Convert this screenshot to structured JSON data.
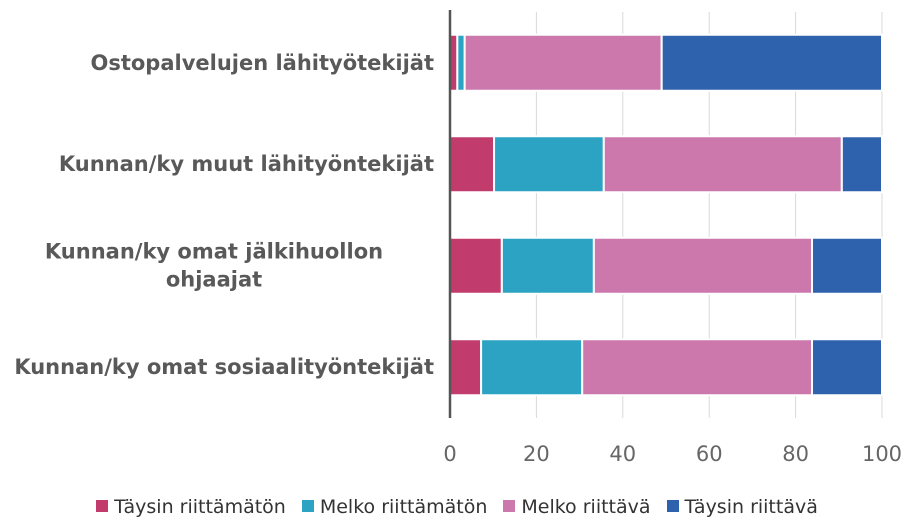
{
  "chart_data": {
    "type": "stacked_barh",
    "categories": [
      "Ostopalvelujen lähityötekijät",
      "Kunnan/ky muut lähityöntekijät",
      "Kunnan/ky omat jälkihuollon ohjaajat",
      "Kunnan/ky omat sosiaalityöntekijät"
    ],
    "series": [
      {
        "name": "Täysin riittämätön",
        "color": "#c13b6c",
        "values": [
          1.7,
          10.2,
          12,
          7.2
        ]
      },
      {
        "name": "Melko riittämätön",
        "color": "#2ca3c3",
        "values": [
          1.7,
          25.4,
          21.3,
          23.4
        ]
      },
      {
        "name": "Melko riittävä",
        "color": "#cc78ad",
        "values": [
          45.6,
          55.1,
          50.5,
          53.2
        ]
      },
      {
        "name": "Täysin riittävä",
        "color": "#2f62ad",
        "values": [
          51.0,
          9.3,
          16.2,
          16.2
        ]
      }
    ],
    "xlim": [
      0,
      100
    ],
    "xticks": [
      0,
      20,
      40,
      60,
      80,
      100
    ],
    "grid": true,
    "legend": "bottom"
  }
}
